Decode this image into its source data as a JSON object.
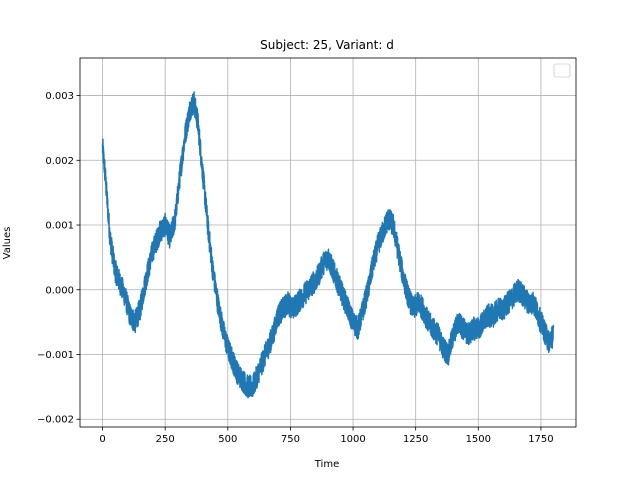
{
  "chart_data": {
    "type": "line",
    "title": "Subject: 25, Variant: d",
    "xlabel": "Time",
    "ylabel": "Values",
    "xlim": [
      -90,
      1890
    ],
    "ylim": [
      -0.00212,
      0.00358
    ],
    "x_ticks": [
      0,
      250,
      500,
      750,
      1000,
      1250,
      1500,
      1750
    ],
    "x_tick_labels": [
      "0",
      "250",
      "500",
      "750",
      "1000",
      "1250",
      "1500",
      "1750"
    ],
    "y_ticks": [
      -0.002,
      -0.001,
      0.0,
      0.001,
      0.002,
      0.003
    ],
    "y_tick_labels": [
      "−0.002",
      "−0.001",
      "0.000",
      "0.001",
      "0.002",
      "0.003"
    ],
    "grid": true,
    "legend": {
      "position": "top-right",
      "entries": []
    },
    "series": [
      {
        "color": "#1f77b4",
        "noise_amplitude": 0.00018,
        "x": [
          0,
          10,
          20,
          30,
          50,
          70,
          90,
          110,
          130,
          150,
          170,
          200,
          230,
          250,
          270,
          290,
          310,
          330,
          350,
          365,
          380,
          400,
          420,
          440,
          460,
          480,
          500,
          520,
          540,
          560,
          580,
          600,
          620,
          650,
          680,
          700,
          720,
          740,
          760,
          780,
          800,
          820,
          840,
          860,
          880,
          900,
          920,
          940,
          960,
          980,
          1000,
          1020,
          1040,
          1060,
          1080,
          1100,
          1120,
          1140,
          1160,
          1180,
          1200,
          1220,
          1240,
          1260,
          1280,
          1300,
          1320,
          1340,
          1360,
          1380,
          1400,
          1420,
          1440,
          1460,
          1480,
          1500,
          1520,
          1540,
          1560,
          1580,
          1600,
          1620,
          1640,
          1660,
          1680,
          1700,
          1720,
          1740,
          1760,
          1780,
          1800
        ],
        "y": [
          0.0022,
          0.0018,
          0.0013,
          0.0008,
          0.0003,
          0.0001,
          -0.0001,
          -0.0004,
          -0.0005,
          -0.0003,
          0.0001,
          0.0006,
          0.0009,
          0.001,
          0.0008,
          0.0011,
          0.0018,
          0.0024,
          0.0028,
          0.0029,
          0.0026,
          0.0018,
          0.001,
          0.0003,
          -0.0002,
          -0.0006,
          -0.0009,
          -0.0011,
          -0.0013,
          -0.0014,
          -0.0015,
          -0.0015,
          -0.0013,
          -0.001,
          -0.0007,
          -0.0004,
          -0.0003,
          -0.0002,
          -0.0003,
          -0.0002,
          -0.0001,
          0.0,
          0.0001,
          0.0002,
          0.0004,
          0.0005,
          0.0003,
          0.0001,
          -0.0001,
          -0.0003,
          -0.0005,
          -0.0006,
          -0.0003,
          0.0,
          0.0004,
          0.0007,
          0.0009,
          0.0011,
          0.001,
          0.0006,
          0.0002,
          -0.0001,
          -0.0003,
          -0.0002,
          -0.0003,
          -0.0005,
          -0.0006,
          -0.0007,
          -0.0009,
          -0.001,
          -0.0007,
          -0.0005,
          -0.0006,
          -0.0007,
          -0.0006,
          -0.0006,
          -0.0005,
          -0.0004,
          -0.0004,
          -0.0003,
          -0.0003,
          -0.0002,
          -0.0001,
          0.0,
          -0.0001,
          -0.0002,
          -0.0002,
          -0.0004,
          -0.0006,
          -0.0008,
          -0.0007
        ]
      }
    ]
  }
}
